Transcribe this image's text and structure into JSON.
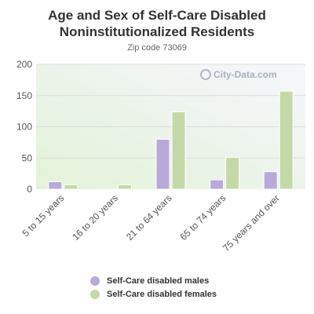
{
  "title_line1": "Age and Sex of Self-Care Disabled",
  "title_line2": "Noninstitutionalized Residents",
  "subtitle": "Zip code 73069",
  "watermark": "City-Data.com",
  "colors": {
    "males": "#b9a9d9",
    "females": "#c5d9a8",
    "grid": "#dddddd",
    "axis_text": "#555555"
  },
  "legend": [
    {
      "label": "Self-Care disabled males",
      "color": "#b9a9d9"
    },
    {
      "label": "Self-Care disabled females",
      "color": "#c5d9a8"
    }
  ],
  "chart_data": {
    "type": "bar",
    "title": "Age and Sex of Self-Care Disabled Noninstitutionalized Residents",
    "subtitle": "Zip code 73069",
    "categories": [
      "5 to 15 years",
      "16 to 20 years",
      "21 to 64 years",
      "65 to 74 years",
      "75 years and over"
    ],
    "series": [
      {
        "name": "Self-Care disabled males",
        "values": [
          12,
          0,
          80,
          15,
          28
        ]
      },
      {
        "name": "Self-Care disabled females",
        "values": [
          7,
          7,
          124,
          51,
          157
        ]
      }
    ],
    "ylim": [
      0,
      200
    ],
    "yticks": [
      0,
      50,
      100,
      150,
      200
    ],
    "grid": true,
    "legend_position": "bottom"
  }
}
